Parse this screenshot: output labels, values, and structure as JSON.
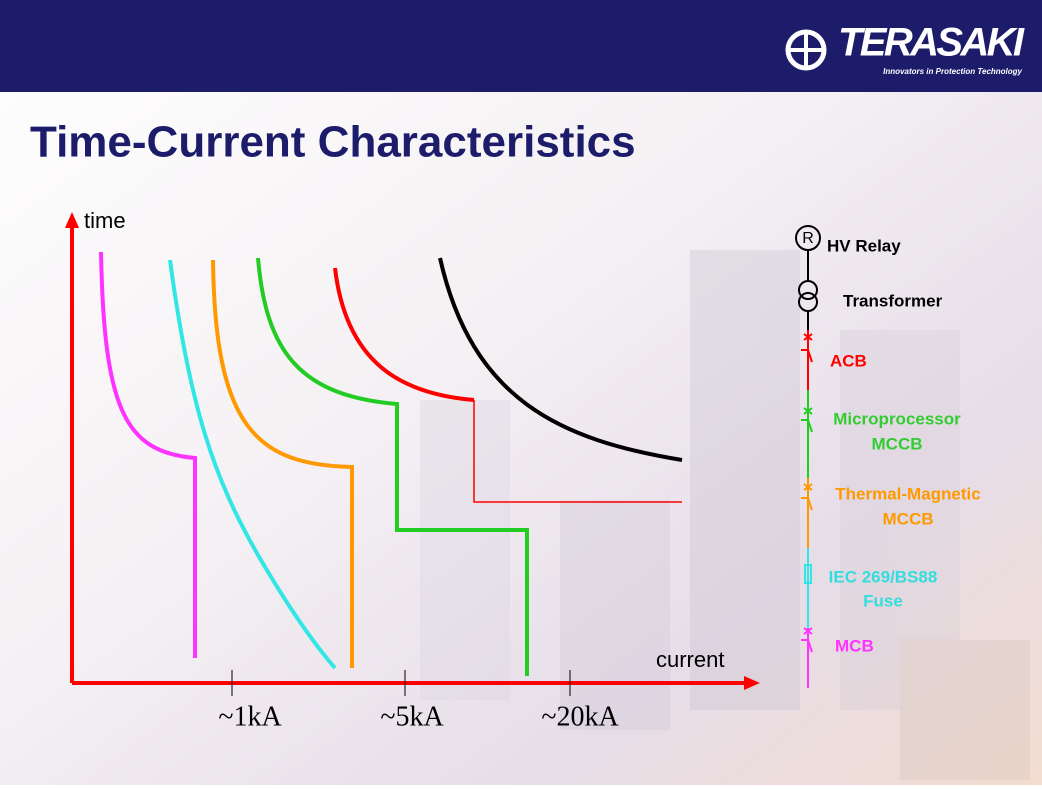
{
  "header": {
    "logo_text": "TERASAKI",
    "tagline": "Innovators in Protection Technology"
  },
  "title": "Time-Current Characteristics",
  "chart": {
    "y_label": "time",
    "x_label": "current",
    "x_ticks": [
      "~1kA",
      "~5kA",
      "~20kA"
    ]
  },
  "diagram": {
    "nodes": [
      {
        "symbol": "R",
        "lines": [
          "HV Relay"
        ]
      },
      {
        "lines": [
          "Transformer"
        ]
      },
      {
        "lines": [
          "ACB"
        ]
      },
      {
        "lines": [
          "Microprocessor",
          "MCCB"
        ]
      },
      {
        "lines": [
          "Thermal-Magnetic",
          "MCCB"
        ]
      },
      {
        "lines": [
          "IEC 269/BS88",
          "Fuse"
        ]
      },
      {
        "lines": [
          "MCB"
        ]
      }
    ]
  }
}
